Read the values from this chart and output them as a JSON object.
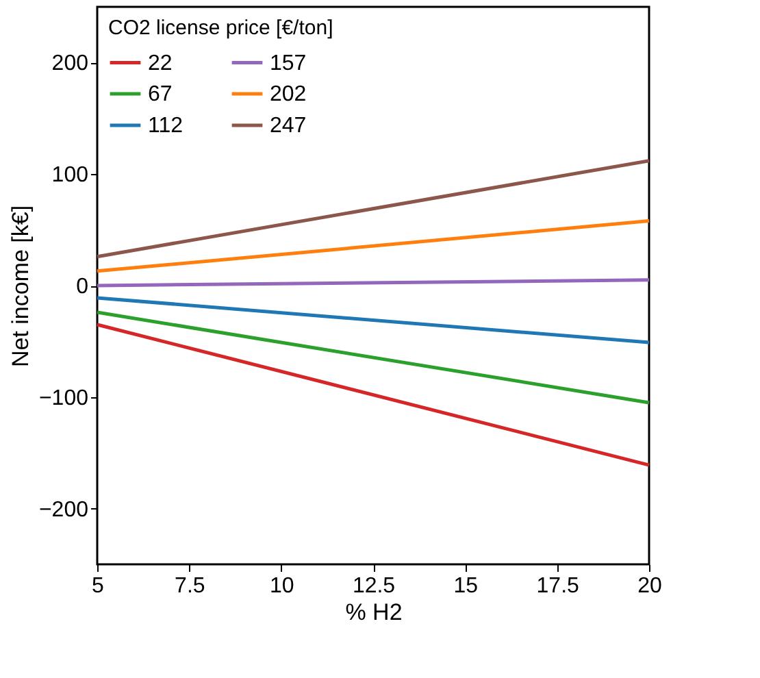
{
  "chart_data": {
    "type": "line",
    "xlabel": "% H2",
    "ylabel": "Net income [k€]",
    "legend_title": "CO2 license price [€/ton]",
    "legend": "top left",
    "grid": false,
    "marker": "none",
    "line_style": "solid",
    "x": [
      5,
      20
    ],
    "xlim": [
      5,
      20
    ],
    "xticks": [
      5,
      7.5,
      10,
      12.5,
      15,
      17.5,
      20
    ],
    "ylim": [
      -250,
      250
    ],
    "yticks": [
      -200,
      -100,
      0,
      100,
      200
    ],
    "series": [
      {
        "name": "22",
        "color": "#d62728",
        "values": [
          -35,
          -161
        ]
      },
      {
        "name": "67",
        "color": "#2ca02c",
        "values": [
          -24,
          -105
        ]
      },
      {
        "name": "112",
        "color": "#1f77b4",
        "values": [
          -11,
          -51
        ]
      },
      {
        "name": "157",
        "color": "#9467bd",
        "values": [
          0,
          5
        ]
      },
      {
        "name": "202",
        "color": "#ff7f0e",
        "values": [
          13,
          58
        ]
      },
      {
        "name": "247",
        "color": "#8c564b",
        "values": [
          26,
          112
        ]
      }
    ]
  }
}
